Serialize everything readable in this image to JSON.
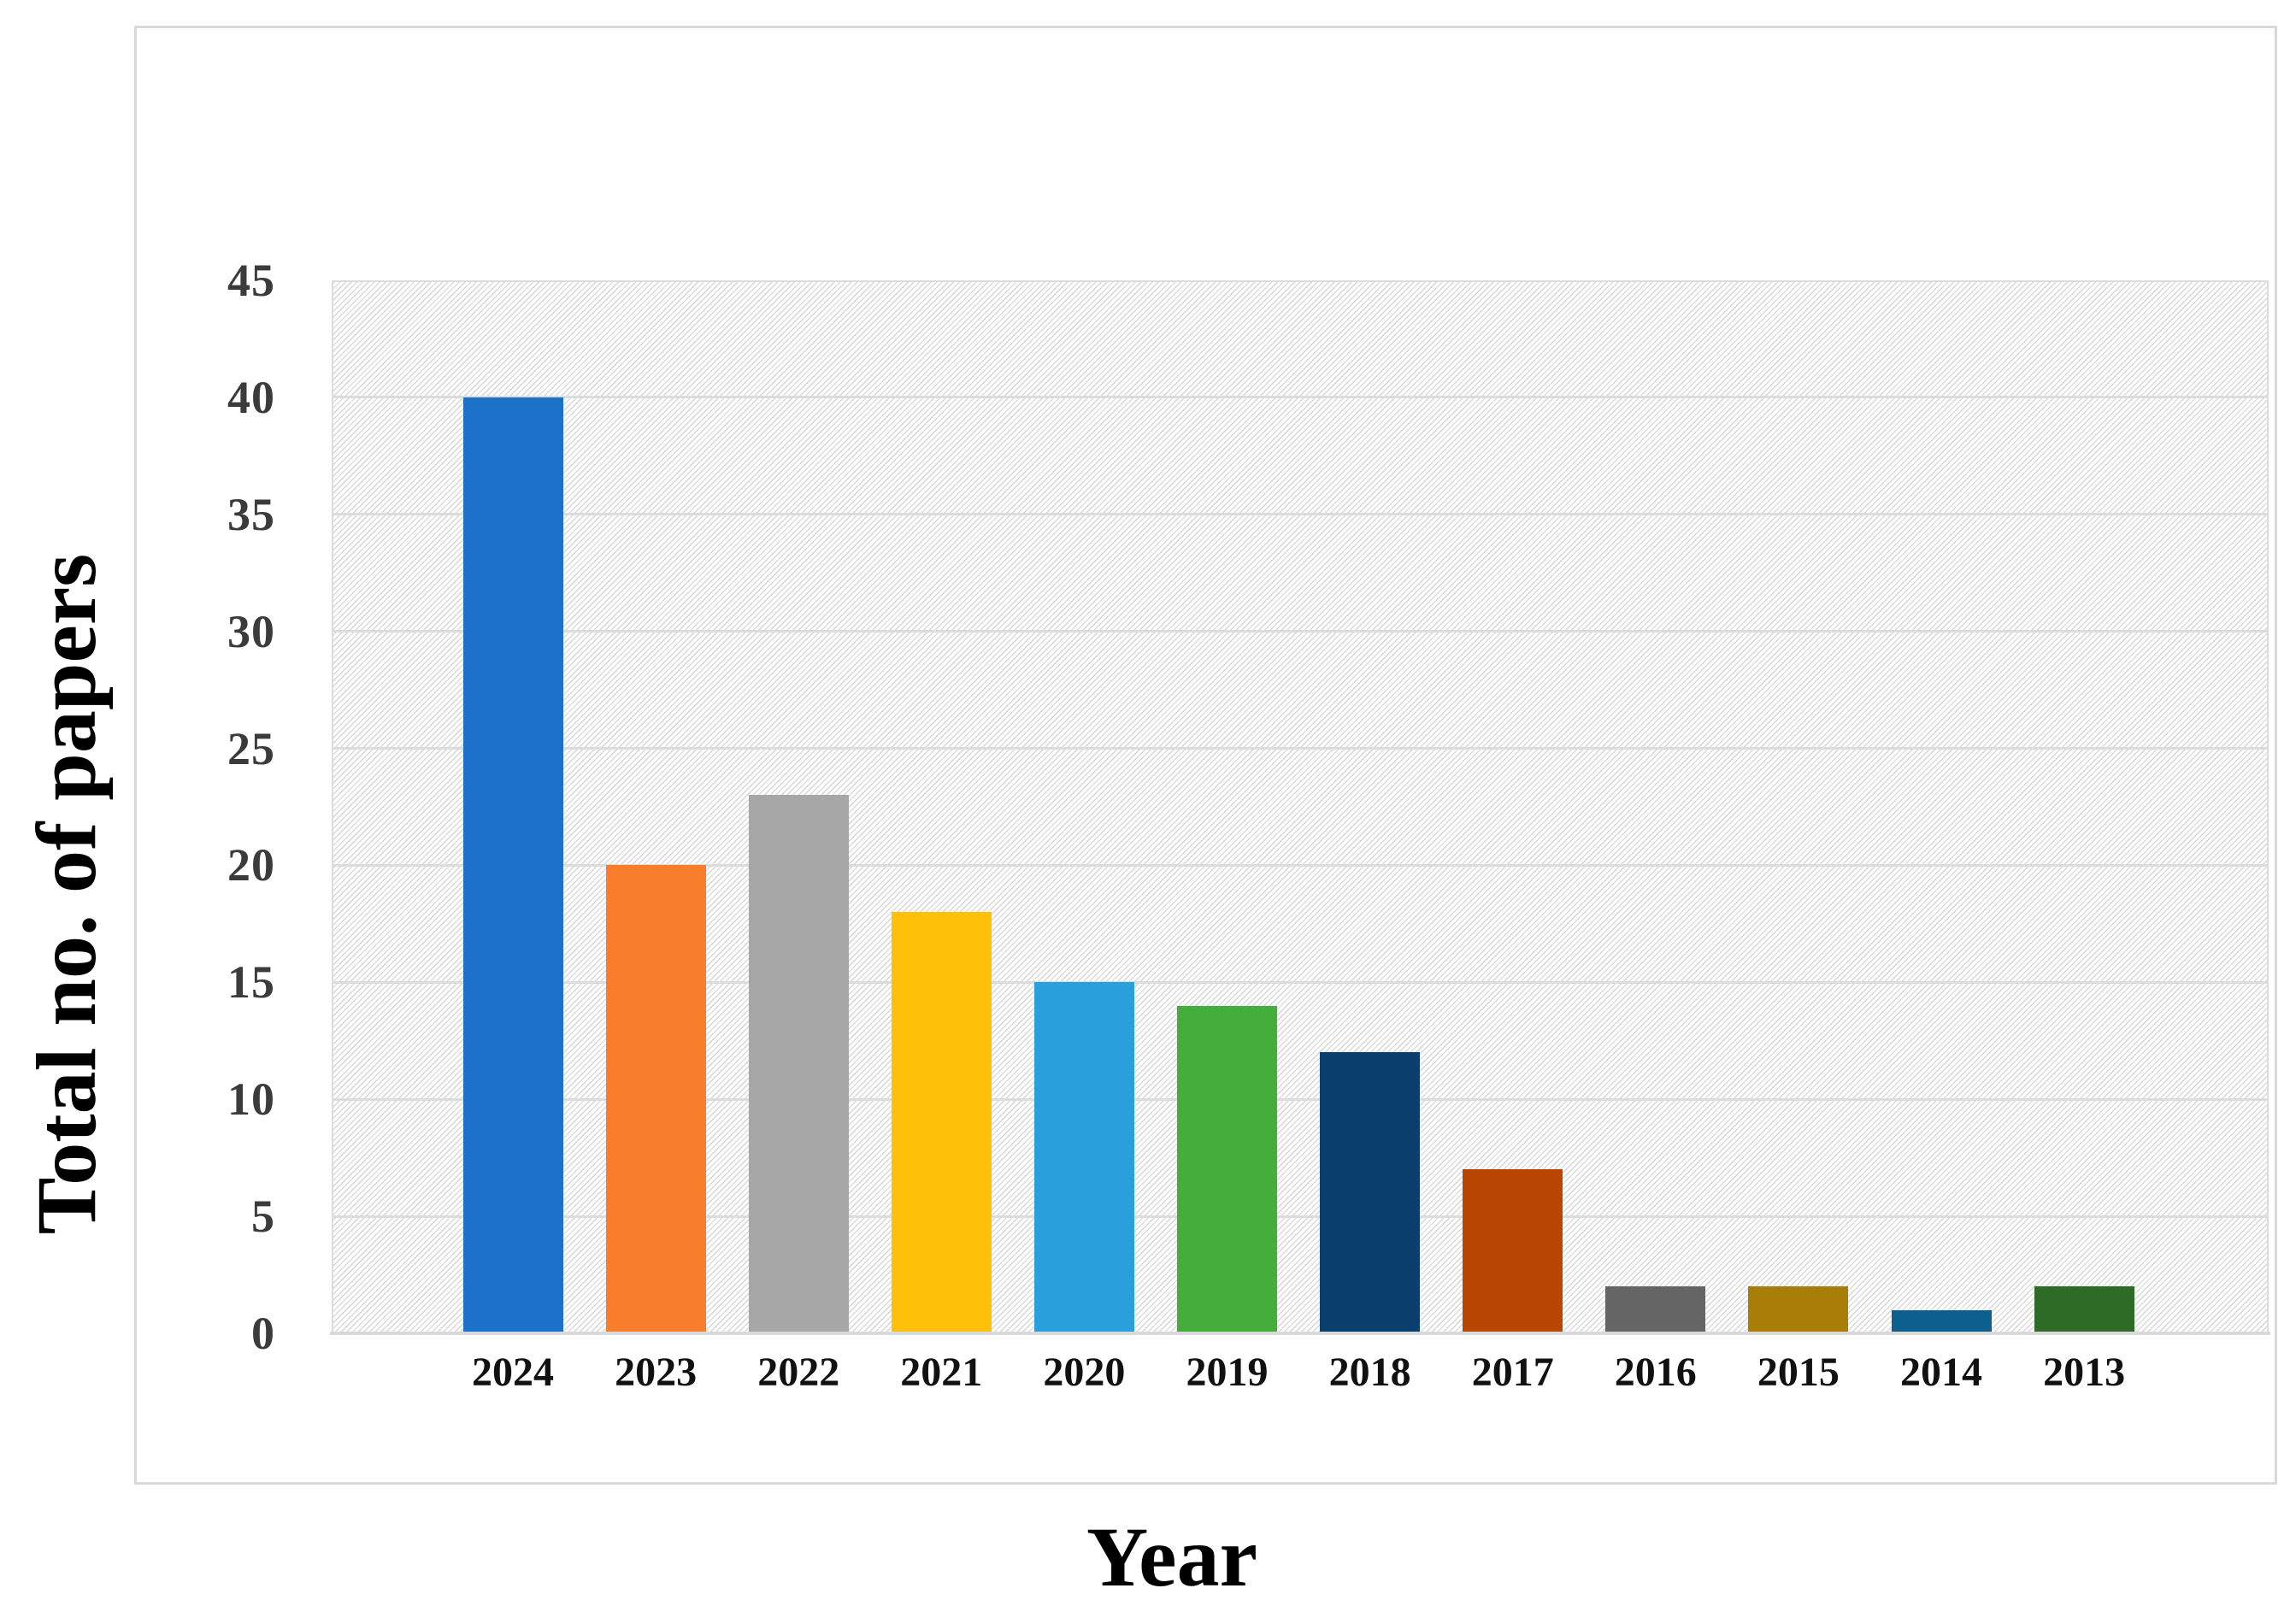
{
  "figure": {
    "x_axis_title": "Year",
    "y_axis_title": "Total no. of papers"
  },
  "chart_data": {
    "type": "bar",
    "title": "",
    "xlabel": "Year",
    "ylabel": "Total no. of papers",
    "categories": [
      "2024",
      "2023",
      "2022",
      "2021",
      "2020",
      "2019",
      "2018",
      "2017",
      "2016",
      "2015",
      "2014",
      "2013"
    ],
    "values": [
      40,
      20,
      23,
      18,
      15,
      14,
      12,
      7,
      2,
      2,
      1,
      2
    ],
    "bar_colors": [
      "#1b72c8",
      "#f87e2b",
      "#a7a7a7",
      "#fec009",
      "#28a0db",
      "#45ad3b",
      "#0b406e",
      "#b94603",
      "#656565",
      "#a87d08",
      "#0d608e",
      "#2d6b27"
    ],
    "yticks": [
      0,
      5,
      10,
      15,
      20,
      25,
      30,
      35,
      40,
      45
    ],
    "ylim": [
      0,
      45
    ],
    "grid": "horizontal",
    "legend": "none",
    "plot_background": "fine-diagonal-hatch",
    "colors": {
      "gridline": "#dcdcdc",
      "figure_border": "#d9d9d9",
      "y_tick_label": "#3b3b3b",
      "x_tick_label": "#111111",
      "axis_title": "#000000"
    }
  }
}
